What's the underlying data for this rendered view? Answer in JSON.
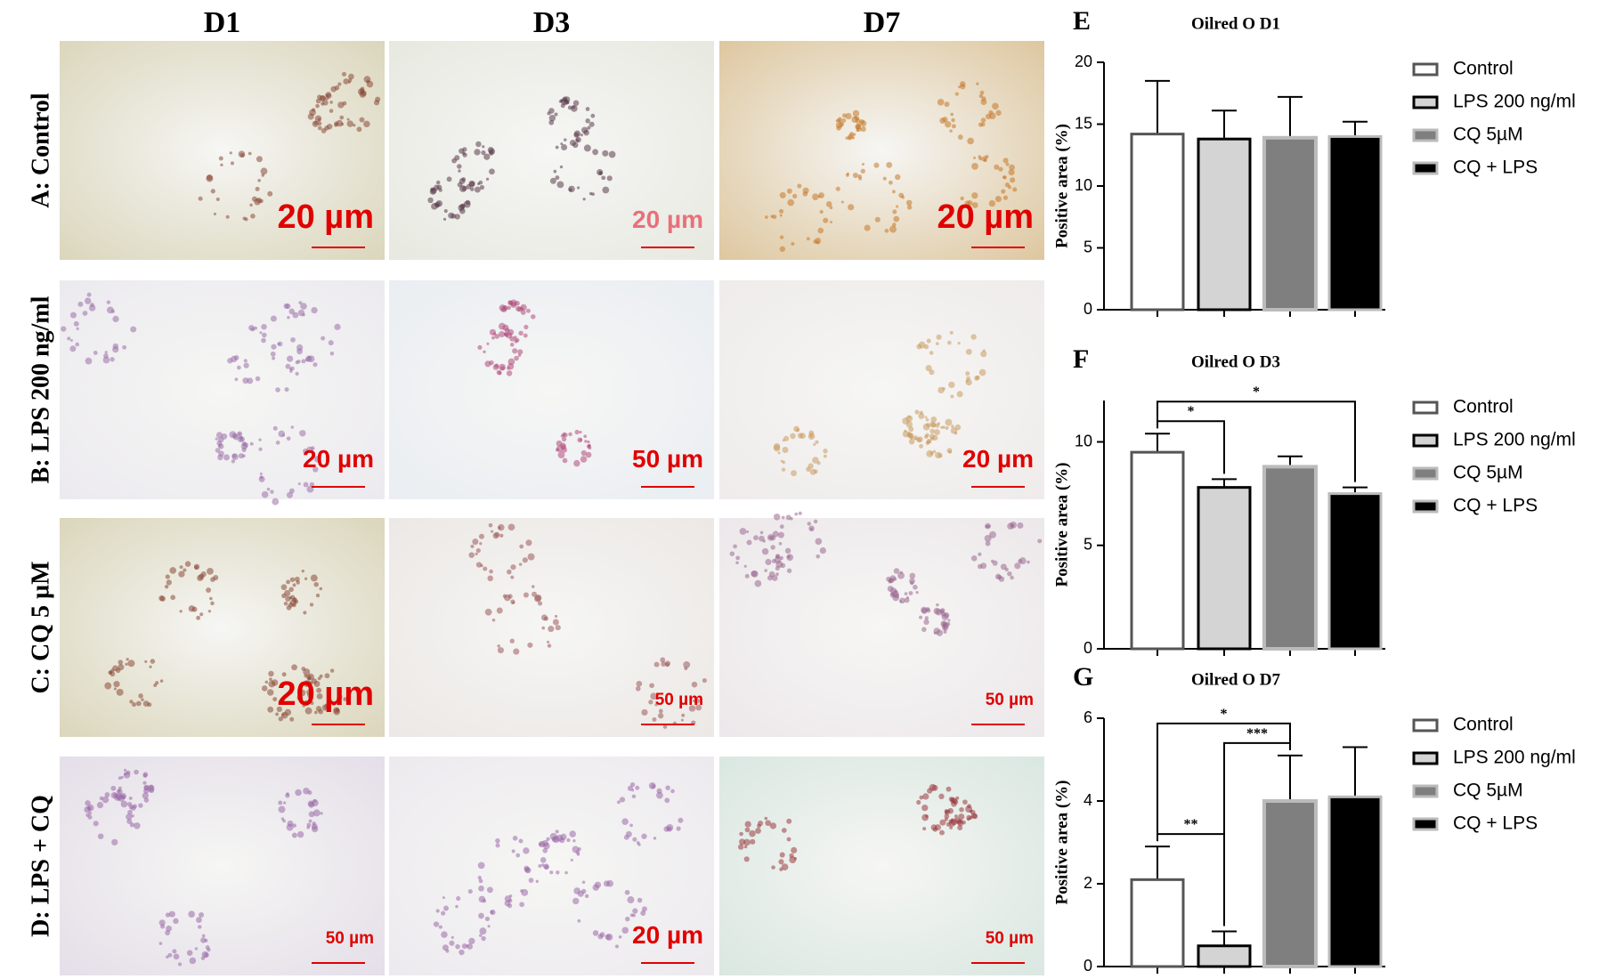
{
  "figure": {
    "columns": [
      "D1",
      "D3",
      "D7"
    ],
    "rows": [
      {
        "label": "A: Control",
        "scale_bars": [
          "20 µm",
          "20 µm",
          "20 µm"
        ]
      },
      {
        "label": "B: LPS 200 ng/ml",
        "scale_bars": [
          "20 µm",
          "50 µm",
          "20 µm"
        ]
      },
      {
        "label": "C: CQ 5 µM",
        "scale_bars": [
          "20 µm",
          "50 µm",
          "50 µm"
        ]
      },
      {
        "label": "D: LPS + CQ",
        "scale_bars": [
          "50 µm",
          "20 µm",
          "50 µm"
        ]
      }
    ]
  },
  "chart_data": [
    {
      "type": "bar",
      "label": "E",
      "title": "Oilred O D1",
      "y_label": "Positive area (%)",
      "ylim": [
        0,
        20
      ],
      "yticks": [
        0,
        5,
        10,
        15,
        20
      ],
      "series": [
        {
          "name": "Control",
          "color": "#ffffff",
          "values": [
            14.2
          ],
          "errors": [
            4.3
          ]
        },
        {
          "name": "LPS 200 ng/ml",
          "color": "#d4d4d4",
          "values": [
            13.8
          ],
          "errors": [
            2.3
          ]
        },
        {
          "name": "CQ 5µM",
          "color": "#7f7f7f",
          "values": [
            13.9
          ],
          "errors": [
            3.3
          ]
        },
        {
          "name": "CQ + LPS",
          "color": "#000000",
          "values": [
            14.0
          ],
          "errors": [
            1.2
          ]
        }
      ]
    },
    {
      "type": "bar",
      "label": "F",
      "title": "Oilred O D3",
      "y_label": "Positive area (%)",
      "ylim": [
        0,
        12
      ],
      "yticks": [
        0,
        5,
        10
      ],
      "series": [
        {
          "name": "Control",
          "color": "#ffffff",
          "values": [
            9.5
          ],
          "errors": [
            0.9
          ]
        },
        {
          "name": "LPS 200 ng/ml",
          "color": "#d4d4d4",
          "values": [
            7.8
          ],
          "errors": [
            0.4
          ]
        },
        {
          "name": "CQ 5µM",
          "color": "#7f7f7f",
          "values": [
            8.8
          ],
          "errors": [
            0.5
          ]
        },
        {
          "name": "CQ + LPS",
          "color": "#000000",
          "values": [
            7.5
          ],
          "errors": [
            0.3
          ]
        }
      ],
      "comparisons": [
        {
          "pair": [
            0,
            1
          ],
          "label": "*"
        },
        {
          "pair": [
            0,
            3
          ],
          "label": "*"
        }
      ]
    },
    {
      "type": "bar",
      "label": "G",
      "title": "Oilred O D7",
      "y_label": "Positive area (%)",
      "ylim": [
        0,
        6
      ],
      "yticks": [
        0,
        2,
        4,
        6
      ],
      "series": [
        {
          "name": "Control",
          "color": "#ffffff",
          "values": [
            2.1
          ],
          "errors": [
            0.8
          ]
        },
        {
          "name": "LPS 200 ng/ml",
          "color": "#d4d4d4",
          "values": [
            0.5
          ],
          "errors": [
            0.35
          ]
        },
        {
          "name": "CQ 5µM",
          "color": "#7f7f7f",
          "values": [
            4.0
          ],
          "errors": [
            1.1
          ]
        },
        {
          "name": "CQ + LPS",
          "color": "#000000",
          "values": [
            4.1
          ],
          "errors": [
            1.2
          ]
        }
      ],
      "comparisons": [
        {
          "pair": [
            0,
            1
          ],
          "label": "**"
        },
        {
          "pair": [
            1,
            2
          ],
          "label": "***"
        },
        {
          "pair": [
            0,
            2
          ],
          "label": "*"
        }
      ]
    }
  ]
}
